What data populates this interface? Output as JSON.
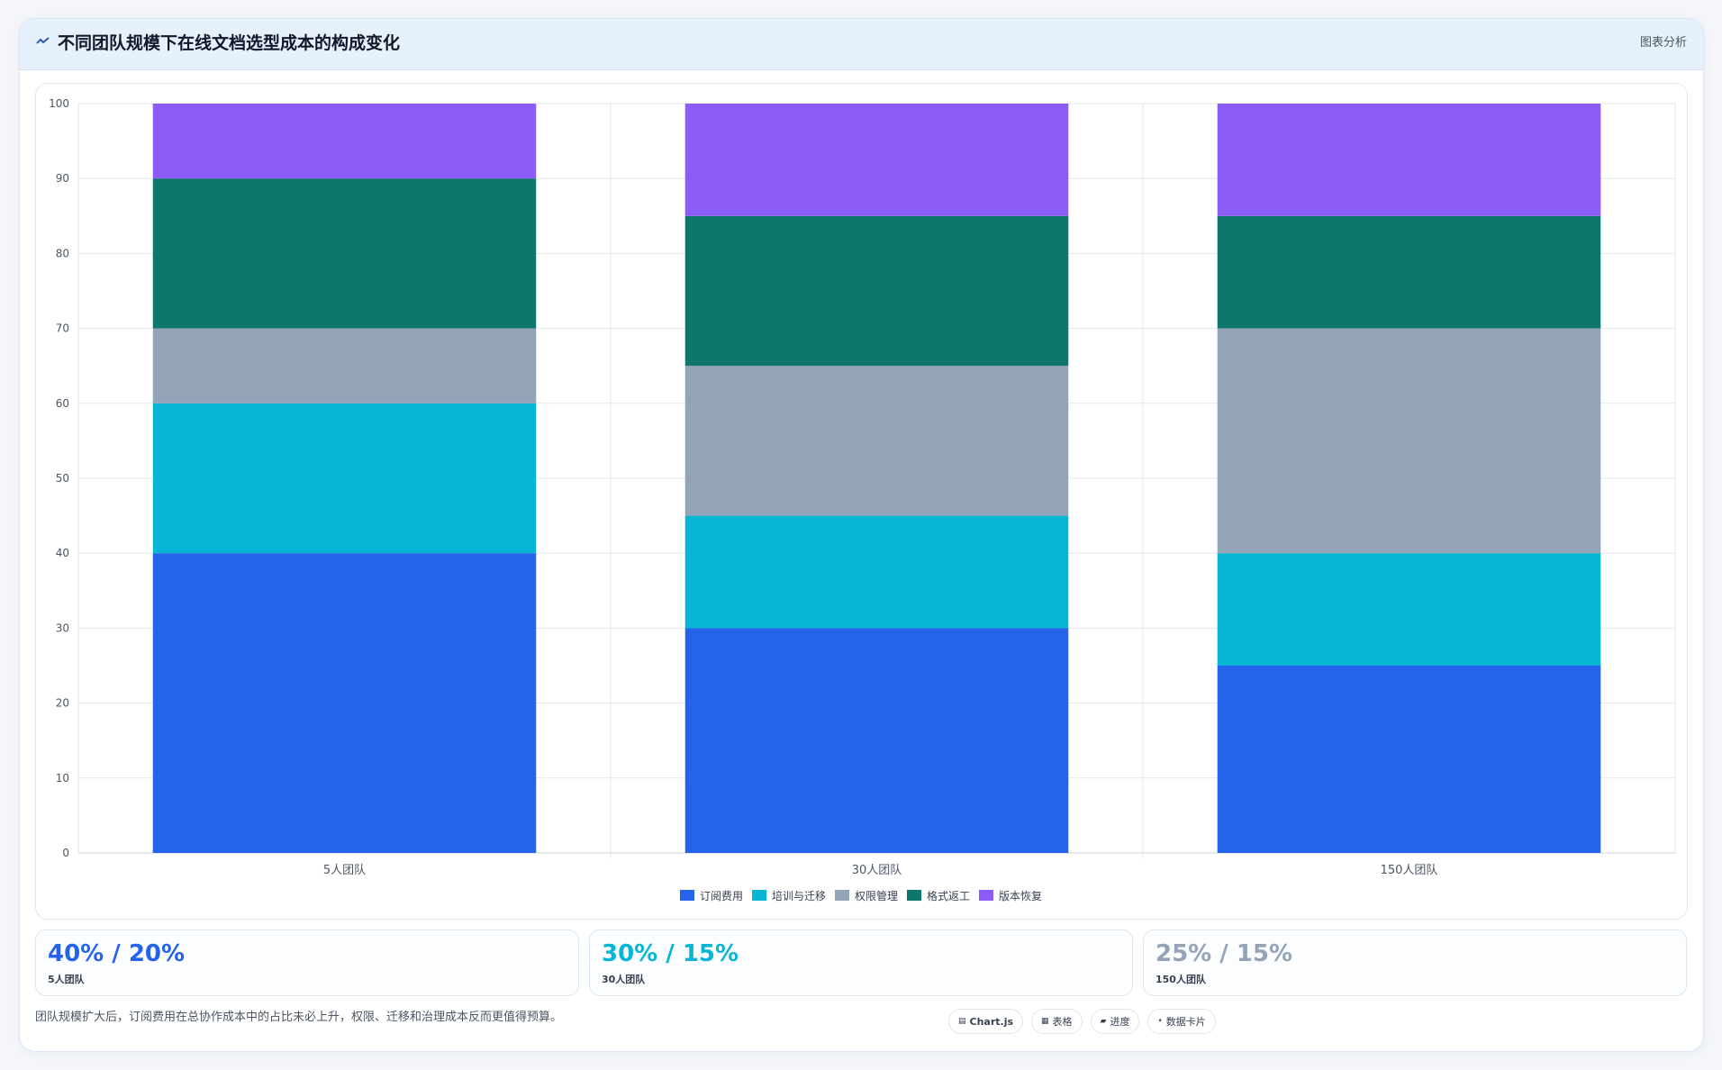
{
  "header": {
    "title": "不同团队规模下在线文档选型成本的构成变化",
    "action_label": "图表分析",
    "icon": "trend-line-icon"
  },
  "chart_data": {
    "type": "bar",
    "stacked": true,
    "categories": [
      "5人团队",
      "30人团队",
      "150人团队"
    ],
    "series": [
      {
        "name": "订阅费用",
        "color": "#2563eb",
        "values": [
          40,
          30,
          25
        ]
      },
      {
        "name": "培训与迁移",
        "color": "#06b6d4",
        "values": [
          20,
          15,
          15
        ]
      },
      {
        "name": "权限管理",
        "color": "#94a3b8",
        "values": [
          10,
          20,
          30
        ]
      },
      {
        "name": "格式返工",
        "color": "#0f766e",
        "values": [
          20,
          20,
          15
        ]
      },
      {
        "name": "版本恢复",
        "color": "#8b5cf6",
        "values": [
          10,
          15,
          15
        ]
      }
    ],
    "ylim": [
      0,
      100
    ],
    "yticks": [
      "0",
      "10",
      "20",
      "30",
      "40",
      "50",
      "60",
      "70",
      "80",
      "90",
      "100"
    ],
    "grid": true,
    "legend_position": "bottom"
  },
  "stats": [
    {
      "value": "40% / 20%",
      "label": "5人团队",
      "color": "#2563eb"
    },
    {
      "value": "30% / 15%",
      "label": "30人团队",
      "color": "#06b6d4"
    },
    {
      "value": "25% / 15%",
      "label": "150人团队",
      "color": "#94a3b8"
    }
  ],
  "footnote": "团队规模扩大后，订阅费用在总协作成本中的占比未必上升，权限、迁移和治理成本反而更值得预算。",
  "tags": [
    {
      "label": "Chart.js",
      "icon": "chart-icon"
    },
    {
      "label": "表格",
      "icon": "table-icon"
    },
    {
      "label": "进度",
      "icon": "progress-icon"
    },
    {
      "label": "数据卡片",
      "icon": "card-icon"
    }
  ]
}
